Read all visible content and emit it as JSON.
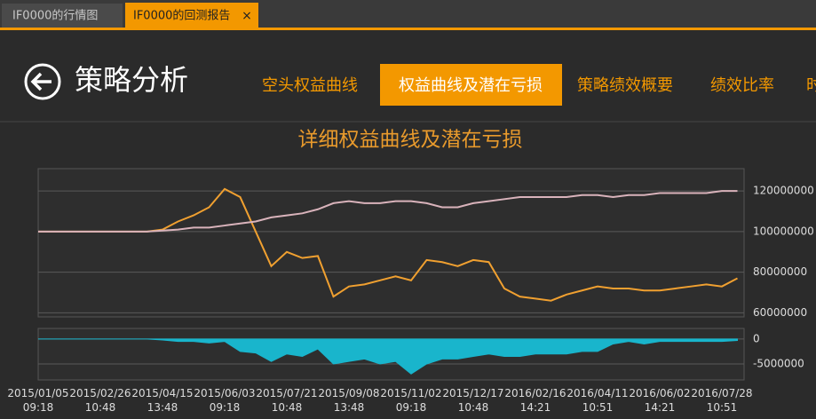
{
  "tabs": [
    {
      "label": "IF0000的行情图"
    },
    {
      "label": "IF0000的回测报告",
      "close": "×"
    }
  ],
  "header": {
    "title": "策略分析"
  },
  "nav": [
    "空头权益曲线",
    "权益曲线及潜在亏损",
    "策略绩效概要",
    "绩效比率",
    "时"
  ],
  "chart_data": [
    {
      "type": "line",
      "title": "详细权益曲线及潜在亏损",
      "series": [
        {
          "color": "#f0a030",
          "values": [
            100000000,
            100000000,
            100000000,
            100000000,
            100000000,
            100000000,
            100000000,
            100000000,
            101000000,
            105000000,
            108000000,
            112000000,
            121000000,
            117000000,
            100000000,
            83000000,
            90000000,
            87000000,
            88000000,
            68000000,
            73000000,
            74000000,
            76000000,
            78000000,
            76000000,
            86000000,
            85000000,
            83000000,
            86000000,
            85000000,
            72000000,
            68000000,
            67000000,
            66000000,
            69000000,
            71000000,
            73000000,
            72000000,
            72000000,
            71000000,
            71000000,
            72000000,
            73000000,
            74000000,
            73000000,
            77000000
          ]
        },
        {
          "color": "#d9b3bb",
          "values": [
            100000000,
            100000000,
            100000000,
            100000000,
            100000000,
            100000000,
            100000000,
            100000000,
            100500000,
            101000000,
            102000000,
            102000000,
            103000000,
            104000000,
            105000000,
            107000000,
            108000000,
            109000000,
            111000000,
            114000000,
            115000000,
            114000000,
            114000000,
            115000000,
            115000000,
            114000000,
            112000000,
            112000000,
            114000000,
            115000000,
            116000000,
            117000000,
            117000000,
            117000000,
            117000000,
            118000000,
            118000000,
            117000000,
            118000000,
            118000000,
            119000000,
            119000000,
            119000000,
            119000000,
            120000000,
            120000000
          ]
        }
      ],
      "ylim": [
        58000000,
        131000000
      ],
      "yticks": [
        60000000,
        80000000,
        100000000,
        120000000
      ],
      "grid": true
    },
    {
      "type": "area",
      "categories": [
        "2015/01/05 09:18",
        null,
        null,
        null,
        "2015/02/26 10:48",
        null,
        null,
        null,
        "2015/04/15 13:48",
        null,
        null,
        null,
        "2015/06/03 09:18",
        null,
        null,
        null,
        "2015/07/21 10:48",
        null,
        null,
        null,
        "2015/09/08 13:48",
        null,
        null,
        null,
        "2015/11/02 09:18",
        null,
        null,
        null,
        "2015/12/17 10:48",
        null,
        null,
        null,
        "2016/02/16 14:21",
        null,
        null,
        null,
        "2016/04/11 10:51",
        null,
        null,
        null,
        "2016/06/02 14:21",
        null,
        null,
        null,
        "2016/07/28 10:51",
        null
      ],
      "series": [
        {
          "color": "#19b5cc",
          "values": [
            0,
            0,
            0,
            0,
            0,
            0,
            0,
            0,
            -200000,
            -500000,
            -500000,
            -800000,
            -500000,
            -2500000,
            -2800000,
            -4500000,
            -3000000,
            -3500000,
            -2000000,
            -5000000,
            -4500000,
            -4000000,
            -5000000,
            -4500000,
            -7000000,
            -5000000,
            -4000000,
            -4000000,
            -3500000,
            -3000000,
            -3500000,
            -3500000,
            -3000000,
            -3000000,
            -3000000,
            -2500000,
            -2500000,
            -1000000,
            -500000,
            -1000000,
            -500000,
            -500000,
            -500000,
            -500000,
            -500000,
            -300000
          ]
        }
      ],
      "ylim": [
        -8200000,
        2100000
      ],
      "yticks": [
        -5000000,
        0
      ],
      "grid": true
    }
  ]
}
